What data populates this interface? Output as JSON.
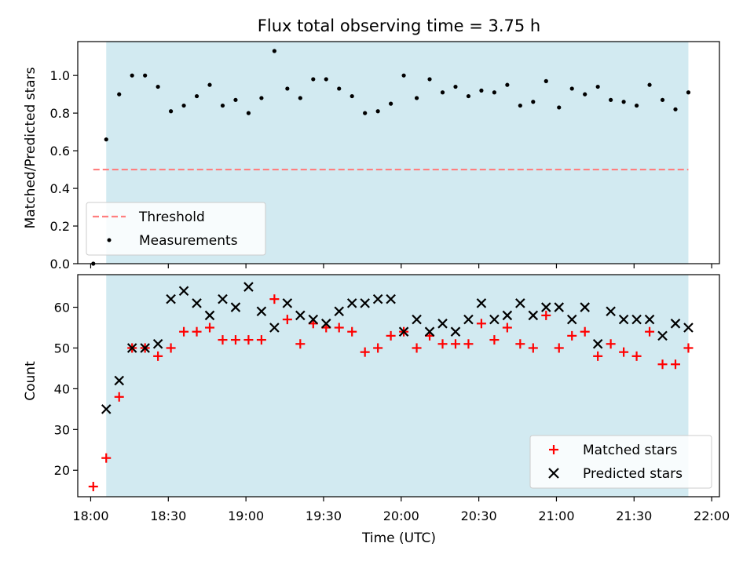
{
  "figure": {
    "title": "Flux total observing time = 3.75 h",
    "xlabel": "Time (UTC)"
  },
  "colors": {
    "span": "#add8e6",
    "threshold": "#ff7f7f",
    "measurements": "#000000",
    "matched": "#ff0000",
    "predicted": "#000000"
  },
  "chart_data": [
    {
      "type": "scatter",
      "ylabel": "Matched/Predicted stars",
      "xlim": [
        "17:55",
        "22:03"
      ],
      "ylim": [
        0,
        1.18
      ],
      "x_ticks": [
        "18:00",
        "18:30",
        "19:00",
        "19:30",
        "20:00",
        "20:30",
        "21:00",
        "21:30",
        "22:00"
      ],
      "y_ticks": [
        "0.0",
        "0.2",
        "0.4",
        "0.6",
        "0.8",
        "1.0"
      ],
      "y_tick_values": [
        0,
        0.2,
        0.4,
        0.6,
        0.8,
        1.0
      ],
      "shaded_span": [
        "18:06",
        "21:51"
      ],
      "grid": false,
      "legend_position": "lower-left",
      "series": [
        {
          "name": "Threshold",
          "kind": "dashed-line",
          "x": [
            "18:01",
            "21:51"
          ],
          "y": [
            0.5,
            0.5
          ]
        },
        {
          "name": "Measurements",
          "kind": "dots",
          "x": [
            "18:01",
            "18:06",
            "18:11",
            "18:16",
            "18:21",
            "18:26",
            "18:31",
            "18:36",
            "18:41",
            "18:46",
            "18:51",
            "18:56",
            "19:01",
            "19:06",
            "19:11",
            "19:16",
            "19:21",
            "19:26",
            "19:31",
            "19:36",
            "19:41",
            "19:46",
            "19:51",
            "19:56",
            "20:01",
            "20:06",
            "20:11",
            "20:16",
            "20:21",
            "20:26",
            "20:31",
            "20:36",
            "20:41",
            "20:46",
            "20:51",
            "20:56",
            "21:01",
            "21:06",
            "21:11",
            "21:16",
            "21:21",
            "21:26",
            "21:31",
            "21:36",
            "21:41",
            "21:46",
            "21:51"
          ],
          "y": [
            0.0,
            0.66,
            0.9,
            1.0,
            1.0,
            0.94,
            0.81,
            0.84,
            0.89,
            0.95,
            0.84,
            0.87,
            0.8,
            0.88,
            1.13,
            0.93,
            0.88,
            0.98,
            0.98,
            0.93,
            0.89,
            0.8,
            0.81,
            0.85,
            1.0,
            0.88,
            0.98,
            0.91,
            0.94,
            0.89,
            0.92,
            0.91,
            0.95,
            0.84,
            0.86,
            0.97,
            0.83,
            0.93,
            0.9,
            0.94,
            0.87,
            0.86,
            0.84,
            0.95,
            0.87,
            0.82,
            0.91
          ]
        }
      ]
    },
    {
      "type": "scatter",
      "ylabel": "Count",
      "xlim": [
        "17:55",
        "22:03"
      ],
      "ylim": [
        13.5,
        68
      ],
      "x_ticks": [
        "18:00",
        "18:30",
        "19:00",
        "19:30",
        "20:00",
        "20:30",
        "21:00",
        "21:30",
        "22:00"
      ],
      "y_ticks": [
        "20",
        "30",
        "40",
        "50",
        "60"
      ],
      "y_tick_values": [
        20,
        30,
        40,
        50,
        60
      ],
      "shaded_span": [
        "18:06",
        "21:51"
      ],
      "grid": false,
      "legend_position": "lower-right",
      "series": [
        {
          "name": "Matched stars",
          "kind": "plus",
          "x": [
            "18:01",
            "18:06",
            "18:11",
            "18:16",
            "18:21",
            "18:26",
            "18:31",
            "18:36",
            "18:41",
            "18:46",
            "18:51",
            "18:56",
            "19:01",
            "19:06",
            "19:11",
            "19:16",
            "19:21",
            "19:26",
            "19:31",
            "19:36",
            "19:41",
            "19:46",
            "19:51",
            "19:56",
            "20:01",
            "20:06",
            "20:11",
            "20:16",
            "20:21",
            "20:26",
            "20:31",
            "20:36",
            "20:41",
            "20:46",
            "20:51",
            "20:56",
            "21:01",
            "21:06",
            "21:11",
            "21:16",
            "21:21",
            "21:26",
            "21:31",
            "21:36",
            "21:41",
            "21:46",
            "21:51"
          ],
          "y": [
            16,
            23,
            38,
            50,
            50,
            48,
            50,
            54,
            54,
            55,
            52,
            52,
            52,
            52,
            62,
            57,
            51,
            56,
            55,
            55,
            54,
            49,
            50,
            53,
            54,
            50,
            53,
            51,
            51,
            51,
            56,
            52,
            55,
            51,
            50,
            58,
            50,
            53,
            54,
            48,
            51,
            49,
            48,
            54,
            46,
            46,
            50
          ]
        },
        {
          "name": "Predicted stars",
          "kind": "x",
          "x": [
            "18:06",
            "18:11",
            "18:16",
            "18:21",
            "18:26",
            "18:31",
            "18:36",
            "18:41",
            "18:46",
            "18:51",
            "18:56",
            "19:01",
            "19:06",
            "19:11",
            "19:16",
            "19:21",
            "19:26",
            "19:31",
            "19:36",
            "19:41",
            "19:46",
            "19:51",
            "19:56",
            "20:01",
            "20:06",
            "20:11",
            "20:16",
            "20:21",
            "20:26",
            "20:31",
            "20:36",
            "20:41",
            "20:46",
            "20:51",
            "20:56",
            "21:01",
            "21:06",
            "21:11",
            "21:16",
            "21:21",
            "21:26",
            "21:31",
            "21:36",
            "21:41",
            "21:46",
            "21:51"
          ],
          "y": [
            35,
            42,
            50,
            50,
            51,
            62,
            64,
            61,
            58,
            62,
            60,
            65,
            59,
            55,
            61,
            58,
            57,
            56,
            59,
            61,
            61,
            62,
            62,
            54,
            57,
            54,
            56,
            54,
            57,
            61,
            57,
            58,
            61,
            58,
            60,
            60,
            57,
            60,
            51,
            59,
            57,
            57,
            57,
            53,
            56,
            55
          ]
        }
      ]
    }
  ]
}
